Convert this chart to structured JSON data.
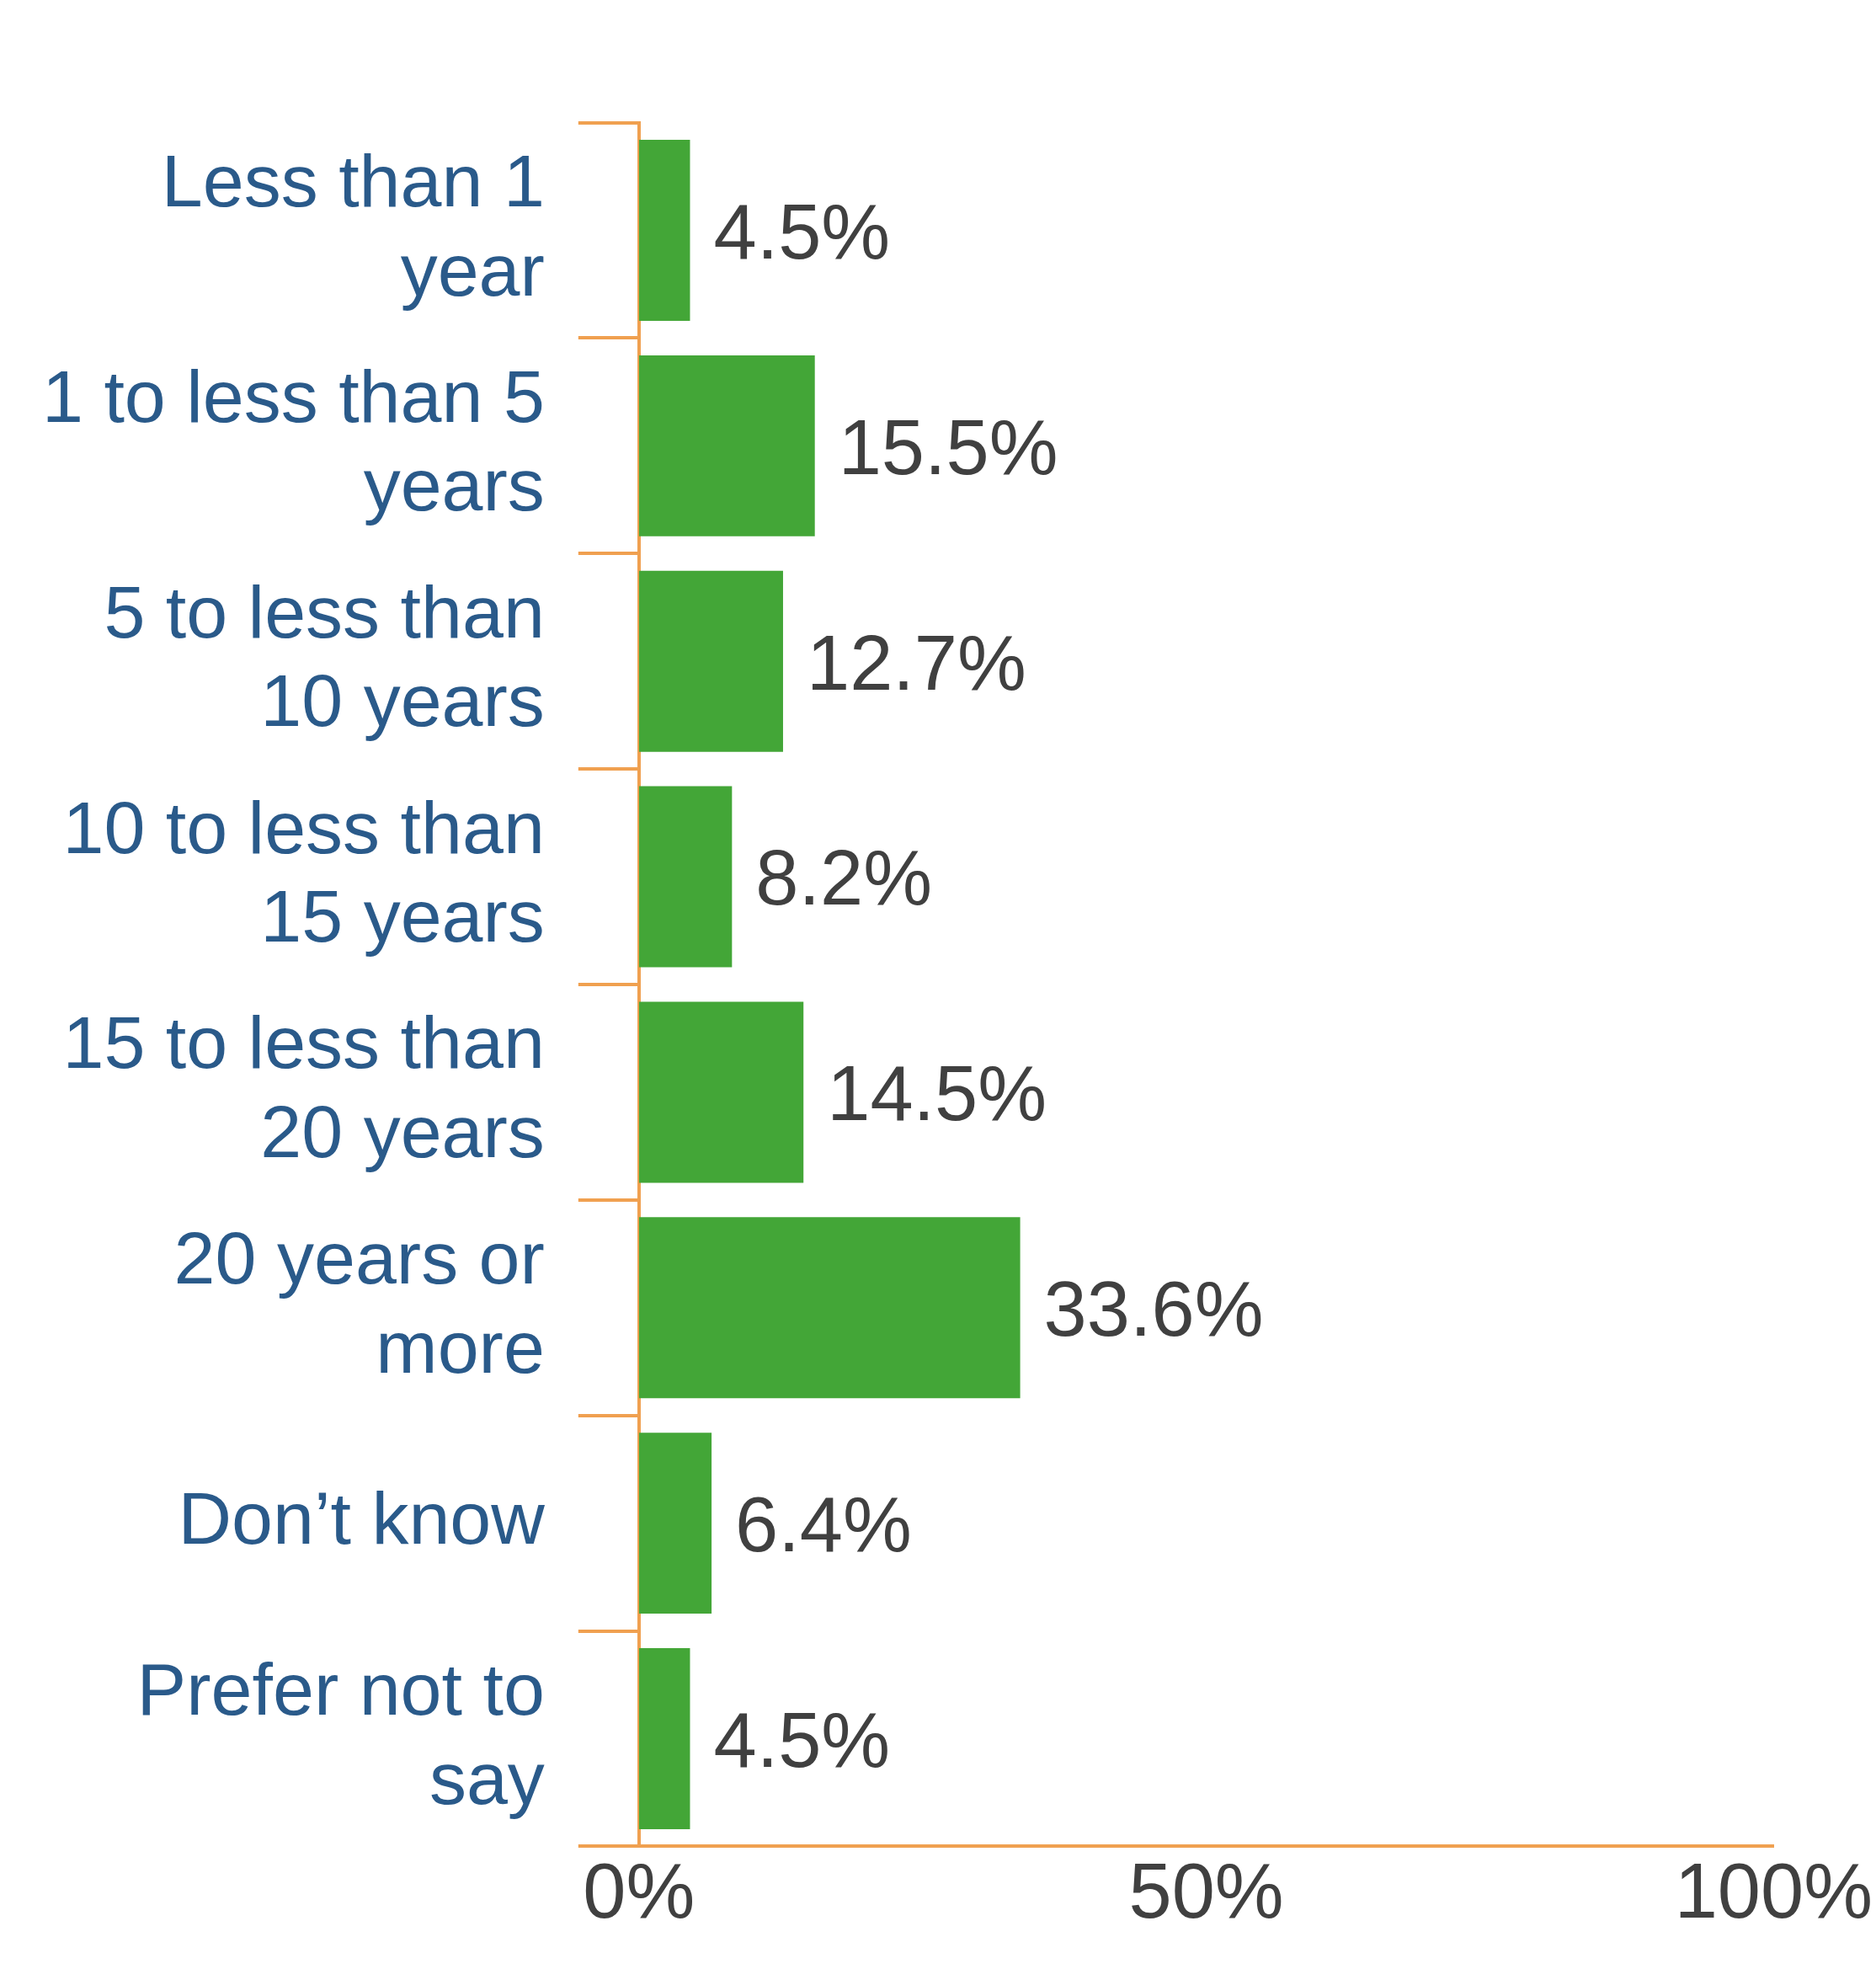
{
  "chart_data": {
    "type": "bar",
    "orientation": "horizontal",
    "categories": [
      "Less than 1 year",
      "1 to less than 5 years",
      "5 to less than 10 years",
      "10 to less than 15 years",
      "15 to less than 20 years",
      "20 years or more",
      "Don’t know",
      "Prefer not to say"
    ],
    "values": [
      4.5,
      15.5,
      12.7,
      8.2,
      14.5,
      33.6,
      6.4,
      4.5
    ],
    "value_labels": [
      "4.5%",
      "15.5%",
      "12.7%",
      "8.2%",
      "14.5%",
      "33.6%",
      "6.4%",
      "4.5%"
    ],
    "color": "#43a637",
    "xlim": [
      0,
      100
    ],
    "xticks": [
      {
        "value": 0,
        "label": "0%"
      },
      {
        "value": 50,
        "label": "50%"
      },
      {
        "value": 100,
        "label": "100%"
      }
    ],
    "grid": false,
    "legend": false
  }
}
